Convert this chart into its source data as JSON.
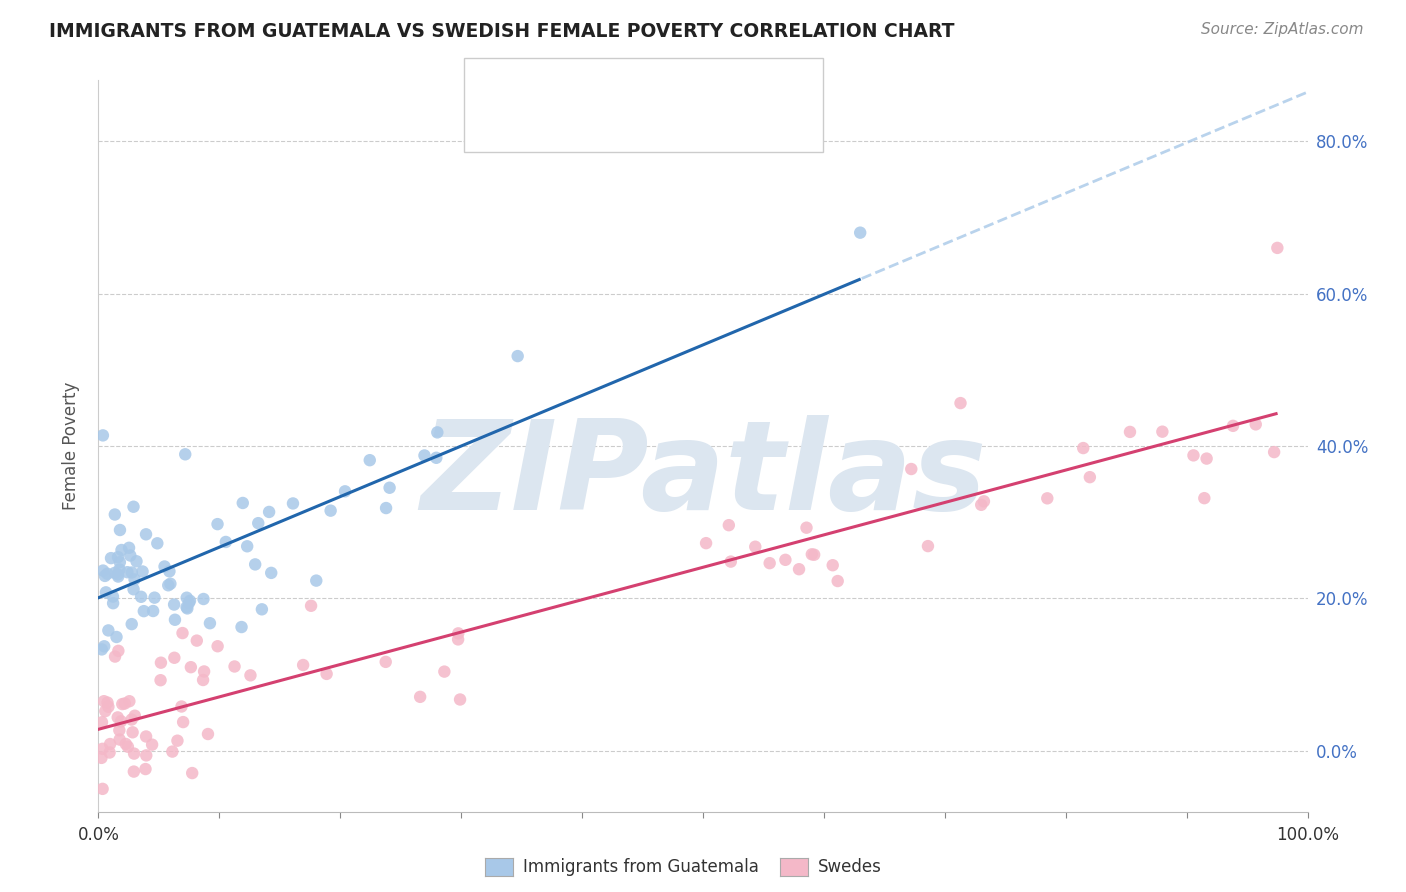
{
  "title": "IMMIGRANTS FROM GUATEMALA VS SWEDISH FEMALE POVERTY CORRELATION CHART",
  "source": "Source: ZipAtlas.com",
  "ylabel": "Female Poverty",
  "xlim": [
    0,
    100
  ],
  "ylim": [
    -8,
    88
  ],
  "ytick_vals": [
    0,
    20,
    40,
    60,
    80
  ],
  "yticklabels_right": [
    "0.0%",
    "20.0%",
    "40.0%",
    "60.0%",
    "80.0%"
  ],
  "xtick_vals": [
    0,
    10,
    20,
    30,
    40,
    50,
    60,
    70,
    80,
    90,
    100
  ],
  "xlabel_ticks": [
    0,
    100
  ],
  "xticklabels": [
    "0.0%",
    "100.0%"
  ],
  "blue_color": "#a8c8e8",
  "pink_color": "#f4b8c8",
  "blue_line_color": "#2166ac",
  "pink_line_color": "#d44070",
  "blue_dash_color": "#a8c8e8",
  "watermark": "ZIPatlas",
  "watermark_color": "#dce6f0",
  "background_color": "#ffffff",
  "title_color": "#222222",
  "blue_label": "Immigrants from Guatemala",
  "pink_label": "Swedes",
  "right_tick_color": "#4472c4",
  "legend_text_color": "#222222",
  "number_color": "#4472c4",
  "blue_intercept": 20.0,
  "blue_slope": 0.55,
  "pink_intercept": 4.0,
  "pink_slope": 0.38
}
